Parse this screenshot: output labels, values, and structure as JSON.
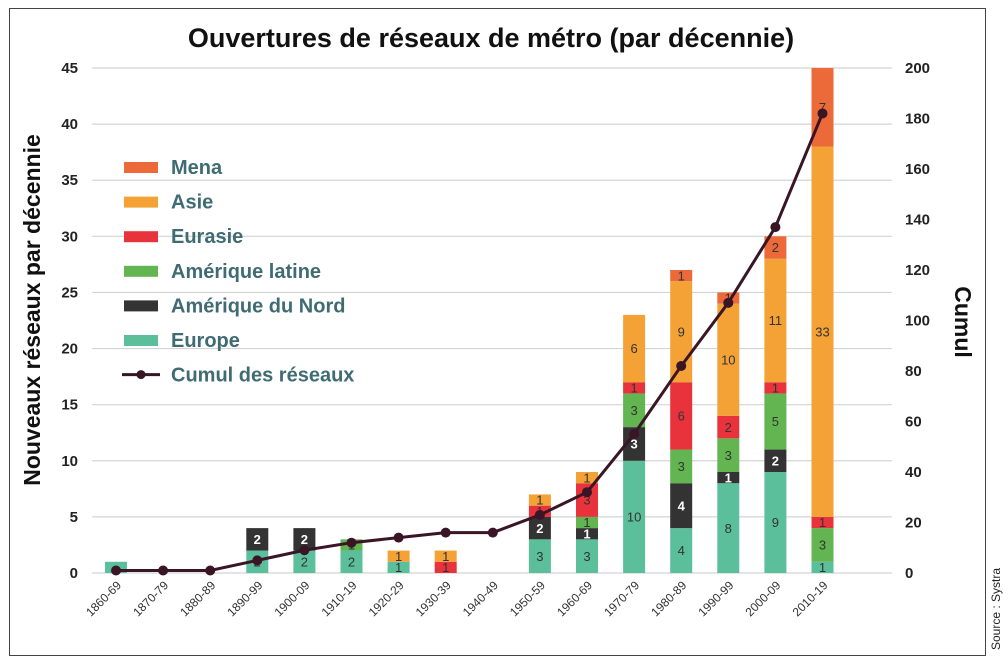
{
  "chart_data": {
    "type": "bar",
    "title": "Ouvertures de réseaux de métro (par décennie)",
    "ylabel": "Nouveaux réseaux par décennie",
    "y2label": "Cumul",
    "ylim": [
      0,
      45
    ],
    "y2lim": [
      0,
      200
    ],
    "yticks": [
      0,
      5,
      10,
      15,
      20,
      25,
      30,
      35,
      40,
      45
    ],
    "y2ticks": [
      0,
      20,
      40,
      60,
      80,
      100,
      120,
      140,
      160,
      180,
      200
    ],
    "categories": [
      "1860-69",
      "1870-79",
      "1880-89",
      "1890-99",
      "1900-09",
      "1910-19",
      "1920-29",
      "1930-39",
      "1940-49",
      "1950-59",
      "1960-69",
      "1970-79",
      "1980-89",
      "1990-99",
      "2000-09",
      "2010-19"
    ],
    "series": [
      {
        "name": "Europe",
        "color": "#5bbf9c",
        "values": [
          1,
          0,
          0,
          2,
          2,
          2,
          1,
          0,
          0,
          3,
          3,
          10,
          4,
          8,
          9,
          1
        ],
        "labels": [
          "",
          "",
          "",
          "2",
          "2",
          "2",
          "1",
          "",
          "",
          "3",
          "3",
          "10",
          "4",
          "8",
          "9",
          "1"
        ]
      },
      {
        "name": "Amérique du Nord",
        "color": "#333333",
        "values": [
          0,
          0,
          0,
          2,
          2,
          0,
          0,
          0,
          0,
          2,
          1,
          3,
          4,
          1,
          2,
          0
        ],
        "labels": [
          "",
          "",
          "",
          "2",
          "2",
          "",
          "",
          "",
          "",
          "2",
          "1",
          "3",
          "4",
          "1",
          "2",
          ""
        ]
      },
      {
        "name": "Amérique latine",
        "color": "#62b550",
        "values": [
          0,
          0,
          0,
          0,
          0,
          1,
          0,
          0,
          0,
          0,
          1,
          3,
          3,
          3,
          5,
          3
        ],
        "labels": [
          "",
          "",
          "",
          "",
          "",
          "1",
          "",
          "",
          "",
          "",
          "1",
          "3",
          "3",
          "3",
          "5",
          "3"
        ]
      },
      {
        "name": "Eurasie",
        "color": "#e8323c",
        "values": [
          0,
          0,
          0,
          0,
          0,
          0,
          0,
          1,
          0,
          1,
          3,
          1,
          6,
          2,
          1,
          1
        ],
        "labels": [
          "",
          "",
          "",
          "",
          "",
          "",
          "",
          "1",
          "",
          "1",
          "3",
          "1",
          "6",
          "2",
          "1",
          "1"
        ]
      },
      {
        "name": "Asie",
        "color": "#f4a236",
        "values": [
          0,
          0,
          0,
          0,
          0,
          0,
          1,
          1,
          0,
          1,
          1,
          6,
          9,
          10,
          11,
          33
        ],
        "labels": [
          "",
          "",
          "",
          "",
          "",
          "",
          "1",
          "1",
          "",
          "1",
          "1",
          "6",
          "9",
          "10",
          "11",
          "33"
        ]
      },
      {
        "name": "Mena",
        "color": "#ec6a3a",
        "values": [
          0,
          0,
          0,
          0,
          0,
          0,
          0,
          0,
          0,
          0,
          0,
          0,
          1,
          1,
          2,
          7
        ],
        "labels": [
          "",
          "",
          "",
          "",
          "",
          "",
          "",
          "",
          "",
          "",
          "",
          "",
          "1",
          "1",
          "2",
          "7"
        ]
      }
    ],
    "cumulative": {
      "name": "Cumul des réseaux",
      "color": "#3a1526",
      "values": [
        1,
        1,
        1,
        5,
        9,
        12,
        14,
        16,
        16,
        23,
        32,
        55,
        82,
        107,
        137,
        182
      ]
    },
    "legend": [
      "Mena",
      "Asie",
      "Eurasie",
      "Amérique latine",
      "Amérique du Nord",
      "Europe",
      "Cumul des réseaux"
    ],
    "legend_position": "top-left"
  },
  "source": "Source : Systra"
}
